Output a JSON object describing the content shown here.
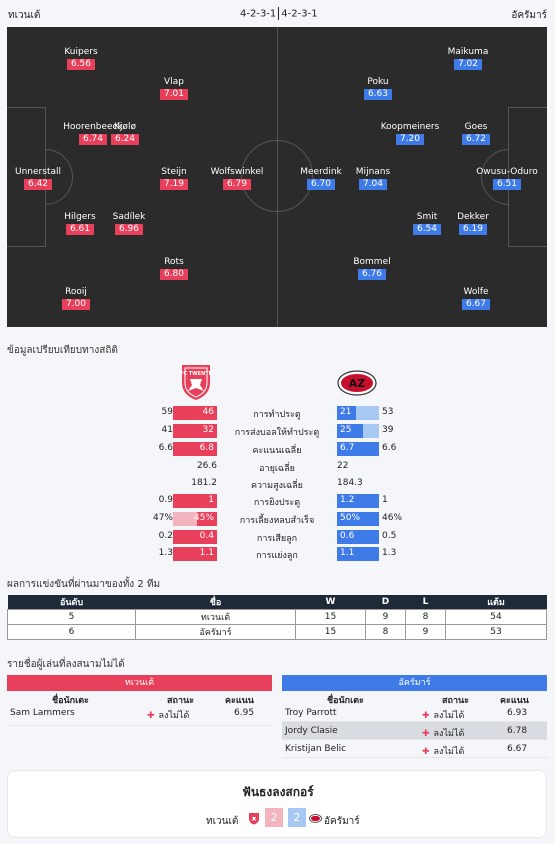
{
  "header": {
    "home_team": "ทเวนเต้",
    "away_team": "อัครัมาร์",
    "home_formation": "4-2-3-1",
    "away_formation": "4-2-3-1"
  },
  "lineup": {
    "home": [
      {
        "name": "Kuipers",
        "rating": "6.56"
      },
      {
        "name": "Vlap",
        "rating": "7.01"
      },
      {
        "name": "Hoorenbeeck",
        "rating": "6.74"
      },
      {
        "name": "Kjølø",
        "rating": "6.24"
      },
      {
        "name": "Unnerstall",
        "rating": "6.42"
      },
      {
        "name": "Steijn",
        "rating": "7.19"
      },
      {
        "name": "Wolfswinkel",
        "rating": "6.79"
      },
      {
        "name": "Hilgers",
        "rating": "6.61"
      },
      {
        "name": "Sadílek",
        "rating": "6.96"
      },
      {
        "name": "Rots",
        "rating": "6.80"
      },
      {
        "name": "Rooij",
        "rating": "7.00"
      }
    ],
    "away": [
      {
        "name": "Maikuma",
        "rating": "7.02"
      },
      {
        "name": "Poku",
        "rating": "6.63"
      },
      {
        "name": "Koopmeiners",
        "rating": "7.20"
      },
      {
        "name": "Goes",
        "rating": "6.72"
      },
      {
        "name": "Meerdink",
        "rating": "6.70"
      },
      {
        "name": "Mijnans",
        "rating": "7.04"
      },
      {
        "name": "Owusu-Oduro",
        "rating": "6.51"
      },
      {
        "name": "Smit",
        "rating": "6.54"
      },
      {
        "name": "Dekker",
        "rating": "6.19"
      },
      {
        "name": "Bommel",
        "rating": "6.76"
      },
      {
        "name": "Wolfe",
        "rating": "6.67"
      }
    ]
  },
  "compare": {
    "title": "ข้อมูลเปรียบเทียบทางสถิติ",
    "home_badge_text": "FC TWENTE",
    "away_badge_text": "AZ",
    "stats": [
      {
        "label": "การทำประตู",
        "home_total": "59",
        "home_avg": "46",
        "away_avg": "21",
        "away_total": "53",
        "home_fill": 1.0,
        "away_fill": 0.45
      },
      {
        "label": "การส่งบอลให้ทำประตู",
        "home_total": "41",
        "home_avg": "32",
        "away_avg": "25",
        "away_total": "39",
        "home_fill": 1.0,
        "away_fill": 0.62
      },
      {
        "label": "คะแนนเฉลี่ย",
        "home_total": "6.6",
        "home_avg": "6.8",
        "away_avg": "6.7",
        "away_total": "6.6",
        "home_fill": 1.0,
        "away_fill": 1.0
      },
      {
        "label": "อายุเฉลี่ย",
        "home_plain": "26.6",
        "away_plain": "22"
      },
      {
        "label": "ความสูงเฉลี่ย",
        "home_plain": "181.2",
        "away_plain": "184.3"
      },
      {
        "label": "การยิงประตู",
        "home_total": "0.9",
        "home_avg": "1",
        "away_avg": "1.2",
        "away_total": "1",
        "home_fill": 1.0,
        "away_fill": 1.0
      },
      {
        "label": "การเลี้ยงหลบสำเร็จ",
        "home_total": "47%",
        "home_avg": "45%",
        "away_avg": "50%",
        "away_total": "46%",
        "home_fill": 0.45,
        "away_fill": 1.0
      },
      {
        "label": "การเสียลูก",
        "home_total": "0.2",
        "home_avg": "0.4",
        "away_avg": "0.6",
        "away_total": "0.5",
        "home_fill": 1.0,
        "away_fill": 1.0
      },
      {
        "label": "การแย่งลูก",
        "home_total": "1.3",
        "home_avg": "1.1",
        "away_avg": "1.1",
        "away_total": "1.3",
        "home_fill": 1.0,
        "away_fill": 1.0
      }
    ]
  },
  "standings": {
    "title": "ผลการแข่งขันที่ผ่านมาของทั้ง 2 ทีม",
    "headers": [
      "อันดับ",
      "ชื่อ",
      "W",
      "D",
      "L",
      "แต้ม"
    ],
    "rows": [
      [
        "5",
        "ทเวนเต้",
        "15",
        "9",
        "8",
        "54"
      ],
      [
        "6",
        "อัครัมาร์",
        "15",
        "8",
        "9",
        "53"
      ]
    ]
  },
  "injuries": {
    "title": "รายชื่อผู้เล่นที่ลงสนามไม่ได้",
    "col_name": "ชื่อนักเตะ",
    "col_status": "สถานะ",
    "col_rating": "คะแนน",
    "home": [
      {
        "name": "Sam Lammers",
        "status": "ลงไม่ได้",
        "rating": "6.95"
      }
    ],
    "away": [
      {
        "name": "Troy Parrott",
        "status": "ลงไม่ได้",
        "rating": "6.93"
      },
      {
        "name": "Jordy Clasie",
        "status": "ลงไม่ได้",
        "rating": "6.78"
      },
      {
        "name": "Kristijan Belic",
        "status": "ลงไม่ได้",
        "rating": "6.67"
      }
    ]
  },
  "prediction": {
    "title": "ฟันธงลงสกอร์",
    "home_score": "2",
    "away_score": "2"
  },
  "colors": {
    "home": "#e8405a",
    "away": "#3e7be8",
    "pitch": "#2b2b2b"
  }
}
